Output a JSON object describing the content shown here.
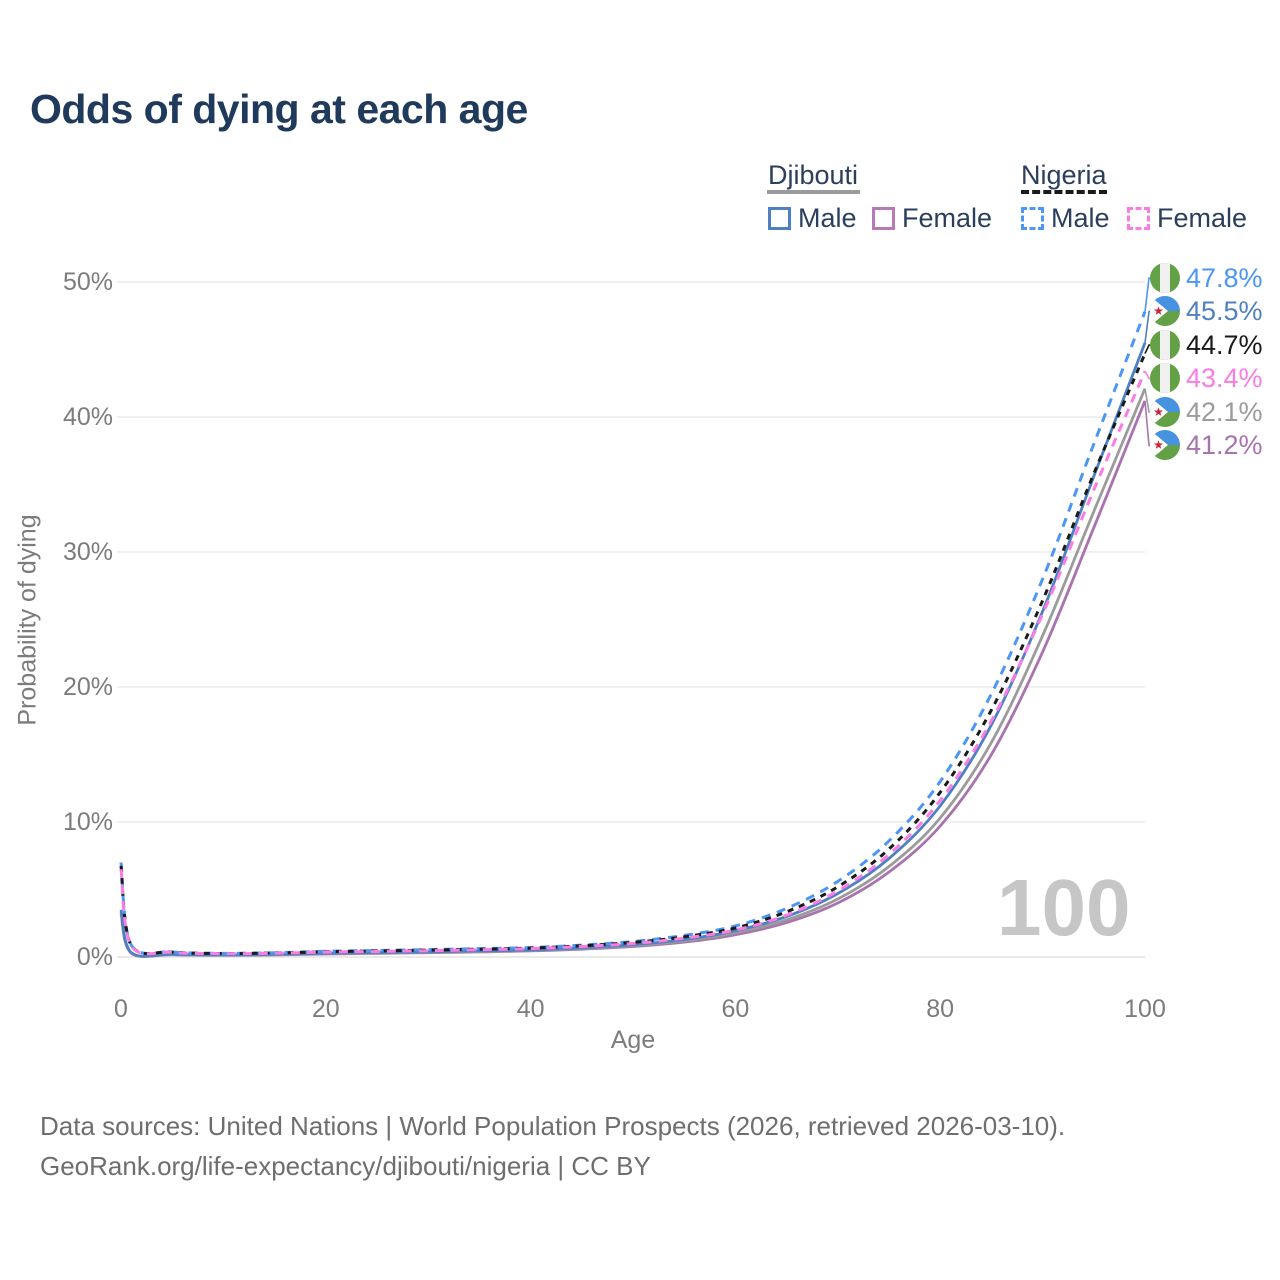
{
  "title": "Odds of dying at each age",
  "legend": {
    "groups": [
      {
        "label": "Djibouti",
        "line_style": "solid",
        "line_color": "#9b9b9b",
        "items": [
          {
            "label": "Male",
            "color": "#4f80c2",
            "style": "solid"
          },
          {
            "label": "Female",
            "color": "#b77ab9",
            "style": "solid"
          }
        ]
      },
      {
        "label": "Nigeria",
        "line_style": "dashed",
        "line_color": "#1a1a1a",
        "items": [
          {
            "label": "Male",
            "color": "#4c96f5",
            "style": "dashed"
          },
          {
            "label": "Female",
            "color": "#fb7ce3",
            "style": "dashed"
          }
        ]
      }
    ]
  },
  "axes": {
    "y_label": "Probability of dying",
    "x_label": "Age",
    "y_ticks": [
      "0%",
      "10%",
      "20%",
      "30%",
      "40%",
      "50%"
    ],
    "x_ticks": [
      "0",
      "20",
      "40",
      "60",
      "80",
      "100"
    ]
  },
  "watermark": "100",
  "footer": {
    "line1": "Data sources: United Nations | World Population Prospects (2026, retrieved 2026-03-10).",
    "line2": "GeoRank.org/life-expectancy/djibouti/nigeria | CC BY"
  },
  "chart_data": {
    "type": "line",
    "title": "Odds of dying at each age",
    "xlabel": "Age",
    "ylabel": "Probability of dying",
    "xlim": [
      0,
      100
    ],
    "ylim_percent": [
      0,
      50
    ],
    "grid": "horizontal",
    "x": [
      0,
      1,
      5,
      10,
      15,
      20,
      25,
      30,
      35,
      40,
      45,
      50,
      55,
      60,
      65,
      70,
      75,
      80,
      85,
      90,
      95,
      100
    ],
    "series": [
      {
        "name": "Nigeria Male",
        "country": "nigeria",
        "sex": "male",
        "color": "#4c96f5",
        "dash": "dashed",
        "end_label": "47.8%",
        "values": [
          7.0,
          0.9,
          0.38,
          0.27,
          0.32,
          0.42,
          0.48,
          0.55,
          0.62,
          0.7,
          0.88,
          1.15,
          1.6,
          2.3,
          3.6,
          5.6,
          8.6,
          13.0,
          19.5,
          28.0,
          38.0,
          47.8
        ]
      },
      {
        "name": "Djibouti Male",
        "country": "djibouti",
        "sex": "male",
        "color": "#4f80c2",
        "dash": "solid",
        "end_label": "45.5%",
        "values": [
          3.5,
          0.33,
          0.2,
          0.15,
          0.2,
          0.28,
          0.33,
          0.38,
          0.45,
          0.52,
          0.68,
          0.92,
          1.3,
          1.95,
          3.0,
          4.7,
          7.3,
          11.2,
          17.2,
          25.6,
          35.6,
          45.5
        ]
      },
      {
        "name": "Nigeria Both sexes",
        "country": "nigeria",
        "sex": "both",
        "color": "#1a1a1a",
        "dash": "dashed",
        "end_label": "44.7%",
        "values": [
          6.75,
          0.87,
          0.36,
          0.26,
          0.3,
          0.39,
          0.45,
          0.51,
          0.58,
          0.66,
          0.83,
          1.08,
          1.5,
          2.15,
          3.35,
          5.2,
          8.0,
          12.2,
          18.3,
          26.4,
          35.8,
          44.7
        ]
      },
      {
        "name": "Nigeria Female",
        "country": "nigeria",
        "sex": "female",
        "color": "#fb7ce3",
        "dash": "dashed",
        "end_label": "43.4%",
        "values": [
          6.5,
          0.84,
          0.34,
          0.25,
          0.28,
          0.36,
          0.41,
          0.47,
          0.54,
          0.62,
          0.78,
          1.0,
          1.4,
          2.0,
          3.1,
          4.9,
          7.6,
          11.6,
          17.5,
          25.4,
          34.6,
          43.4
        ]
      },
      {
        "name": "Djibouti Both sexes",
        "country": "djibouti",
        "sex": "both",
        "color": "#9b9b9b",
        "dash": "solid",
        "end_label": "42.1%",
        "values": [
          3.35,
          0.31,
          0.18,
          0.14,
          0.18,
          0.25,
          0.3,
          0.35,
          0.41,
          0.48,
          0.62,
          0.85,
          1.2,
          1.8,
          2.75,
          4.3,
          6.7,
          10.3,
          15.9,
          23.8,
          33.0,
          42.1
        ]
      },
      {
        "name": "Djibouti Female",
        "country": "djibouti",
        "sex": "female",
        "color": "#a873ae",
        "dash": "solid",
        "end_label": "41.2%",
        "values": [
          3.2,
          0.29,
          0.17,
          0.13,
          0.16,
          0.22,
          0.27,
          0.32,
          0.38,
          0.45,
          0.58,
          0.78,
          1.1,
          1.65,
          2.55,
          4.0,
          6.3,
          9.7,
          15.0,
          22.6,
          31.8,
          41.2
        ]
      }
    ],
    "flag_colors": {
      "nigeria_green": "#64a046",
      "nigeria_white": "#f0f0f0",
      "djibouti_blue": "#4592e0",
      "djibouti_green": "#64a046",
      "djibouti_white": "#ffffff",
      "djibouti_star_red": "#cc2436"
    }
  }
}
